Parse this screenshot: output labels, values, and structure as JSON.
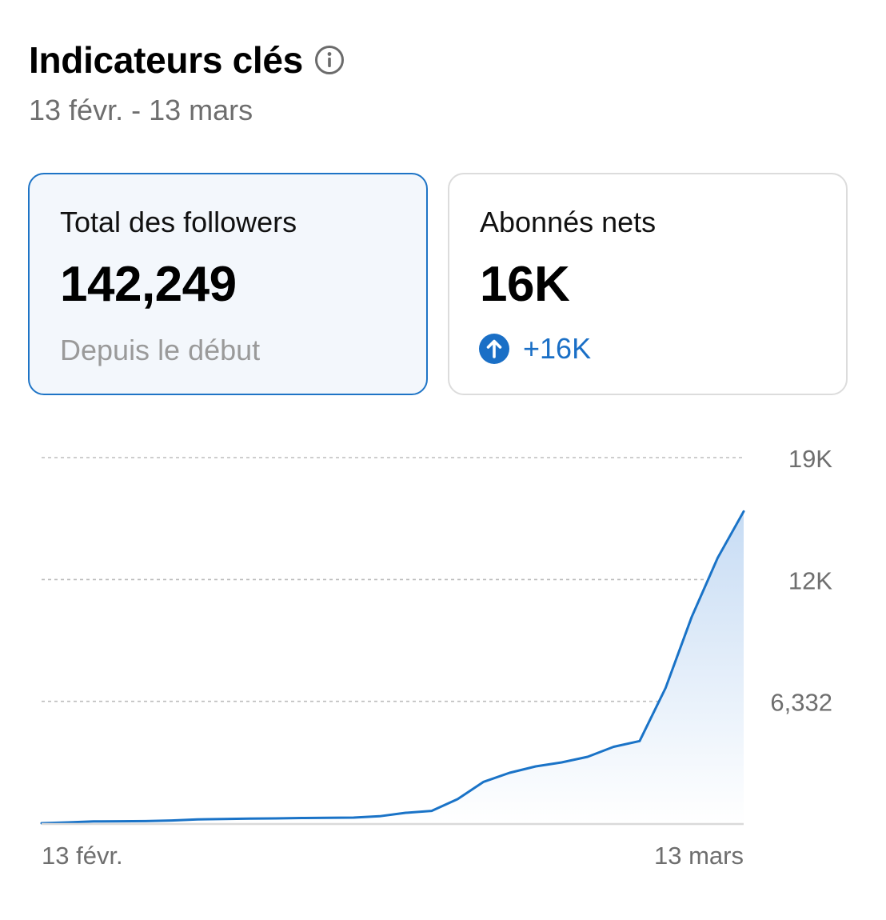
{
  "header": {
    "title": "Indicateurs clés",
    "date_range": "13 févr. - 13 mars",
    "info_icon": "info-icon"
  },
  "cards": {
    "total_followers": {
      "label": "Total des followers",
      "value": "142,249",
      "subtitle": "Depuis le début",
      "selected": true
    },
    "net_followers": {
      "label": "Abonnés nets",
      "value": "16K",
      "change": "+16K",
      "change_icon": "arrow-up-icon",
      "change_color": "#1a6fc6"
    }
  },
  "chart_data": {
    "type": "area",
    "title": "",
    "xlabel": "",
    "ylabel": "",
    "x_tick_labels": [
      "13 févr.",
      "13 mars"
    ],
    "y_tick_labels": [
      "19K",
      "12K",
      "6,332"
    ],
    "y_ticks": [
      19000,
      12664,
      6332
    ],
    "ylim": [
      0,
      19000
    ],
    "grid": true,
    "line_color": "#1a73c7",
    "fill_color": "#cfe2f6",
    "series": [
      {
        "values": [
          0,
          40,
          90,
          100,
          110,
          140,
          200,
          220,
          240,
          250,
          270,
          280,
          290,
          360,
          540,
          640,
          1250,
          2150,
          2620,
          2950,
          3160,
          3450,
          3970,
          4270,
          7030,
          10720,
          13790,
          16200
        ]
      }
    ]
  }
}
